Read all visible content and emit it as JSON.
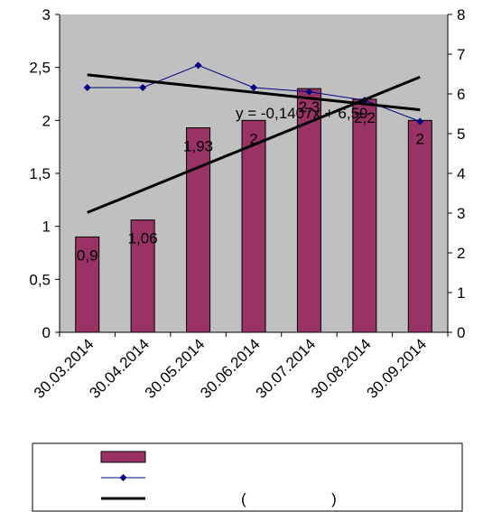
{
  "chart_data": {
    "type": "bar",
    "categories": [
      "30.03.2014",
      "30.04.2014",
      "30.05.2014",
      "30.06.2014",
      "30.07.2014",
      "30.08.2014",
      "30.09.2014"
    ],
    "y_left_ticks": [
      "0",
      "0,5",
      "1",
      "1,5",
      "2",
      "2,5",
      "3"
    ],
    "y_right_ticks": [
      "0",
      "1",
      "2",
      "3",
      "4",
      "5",
      "6",
      "7",
      "8"
    ],
    "ylim_left": [
      0,
      3
    ],
    "ylim_right": [
      0,
      8
    ],
    "grid": false,
    "plot_background": "#c0c0c0",
    "series": [
      {
        "kind": "bar",
        "axis": "left",
        "color": "#993366",
        "values": [
          0.9,
          1.06,
          1.93,
          2.0,
          2.3,
          2.2,
          2.0
        ],
        "labels": [
          "0,9",
          "1,06",
          "1,93",
          "2",
          "2,3",
          "2,2",
          "2"
        ]
      },
      {
        "kind": "line",
        "axis": "left",
        "color": "#000080",
        "marker": "diamond",
        "values": [
          2.31,
          2.31,
          2.52,
          2.31,
          2.27,
          2.19,
          1.99
        ]
      }
    ],
    "trendlines": [
      {
        "axis": "left",
        "color": "#000000",
        "start_value": 2.43,
        "end_value": 2.1
      },
      {
        "axis": "left",
        "color": "#000000",
        "start_value": 1.13,
        "end_value": 2.41
      }
    ],
    "equation": "y = -0,1407x + 6,59",
    "legend": {
      "placement": "bottom",
      "entries": [
        "",
        "",
        ""
      ],
      "paren_text": "(                    )"
    }
  }
}
